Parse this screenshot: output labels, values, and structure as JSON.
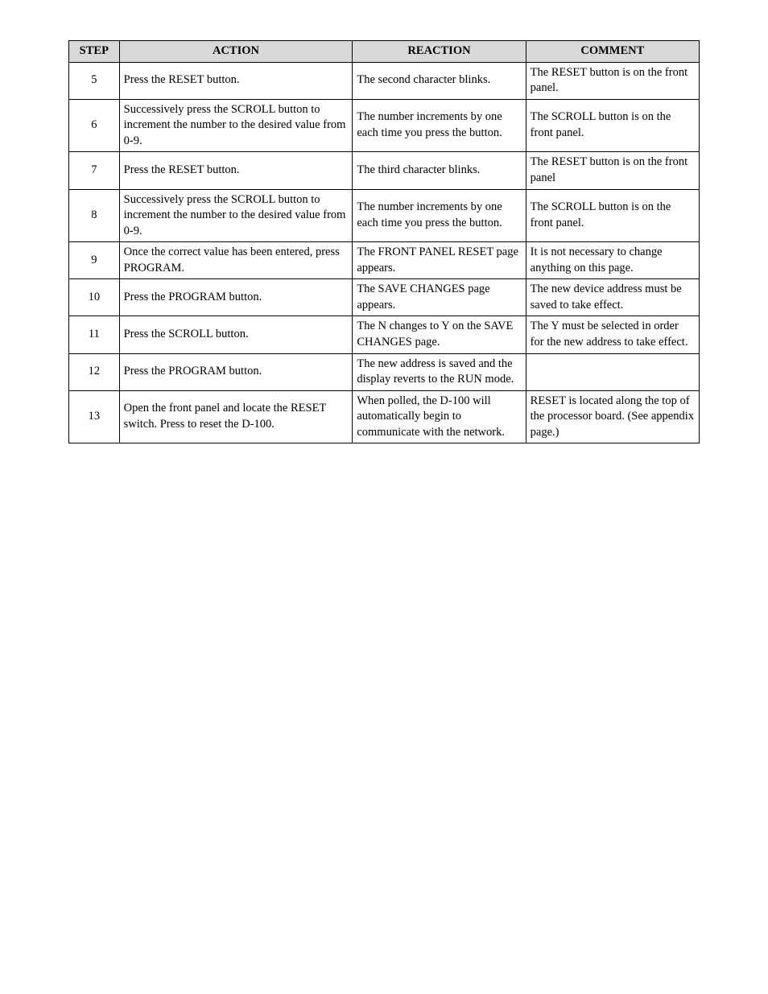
{
  "table": {
    "columns": [
      "STEP",
      "ACTION",
      "REACTION",
      "COMMENT"
    ],
    "rows": [
      {
        "step": "5",
        "action": "Press the RESET button.",
        "reaction": "The second character blinks.",
        "comment": "The RESET button is on the front panel."
      },
      {
        "step": "6",
        "action": "Successively press the SCROLL button to increment the number to the desired value from 0-9.",
        "reaction": "The number increments by one each time you press the button.",
        "comment": "The SCROLL button is on the front panel."
      },
      {
        "step": "7",
        "action": "Press the RESET button.",
        "reaction": "The third character blinks.",
        "comment": "The RESET button is on the front panel"
      },
      {
        "step": "8",
        "action": "Successively press the SCROLL button to increment the number to the desired value from 0-9.",
        "reaction": "The number increments by one each time you press the button.",
        "comment": "The SCROLL button is on the front panel."
      },
      {
        "step": "9",
        "action": "Once the correct value has been entered, press PROGRAM.",
        "reaction": "The FRONT PANEL RESET page appears.",
        "comment": "It is not necessary to change anything on this page."
      },
      {
        "step": "10",
        "action": "Press the PROGRAM button.",
        "reaction": "The SAVE CHANGES page appears.",
        "comment": "The new device address must be saved to take effect."
      },
      {
        "step": "11",
        "action": "Press the SCROLL button.",
        "reaction": "The N changes to Y on the SAVE CHANGES page.",
        "comment": "The Y must be selected in order for the new address to take effect."
      },
      {
        "step": "12",
        "action": "Press the PROGRAM button.",
        "reaction": "The new address is saved and the display reverts to the RUN mode.",
        "comment": ""
      },
      {
        "step": "13",
        "action": "Open the front panel and locate the RESET switch. Press to reset the D-100.",
        "reaction": "When polled, the D-100 will automatically begin to communicate with the network.",
        "comment": "RESET is located along the top of the processor board. (See appendix page.)"
      }
    ]
  }
}
